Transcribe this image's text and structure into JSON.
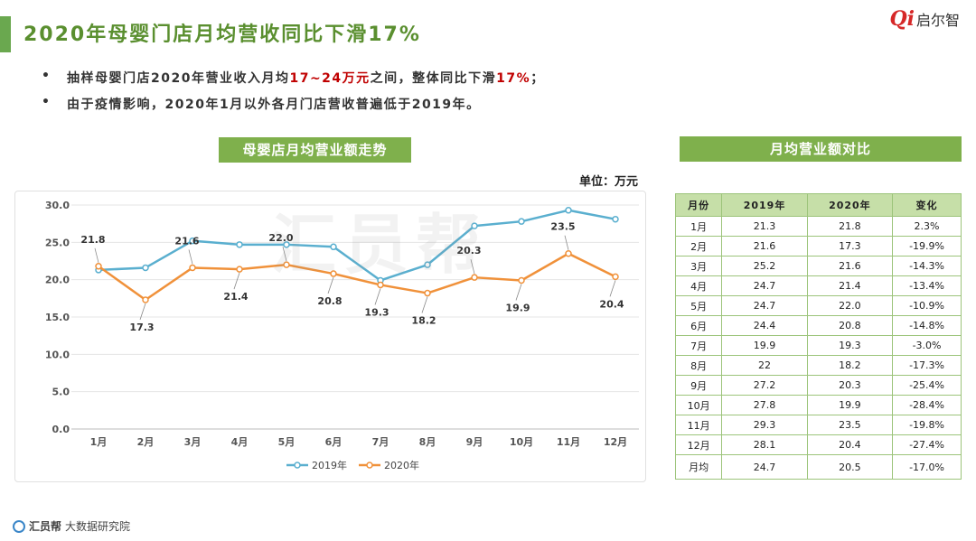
{
  "header": {
    "title": "2020年母婴门店月均营收同比下滑17%"
  },
  "logo": {
    "mark": "Qi",
    "text": "启尔智"
  },
  "bullets": [
    {
      "marker": "•",
      "pre": "抽样母婴门店2020年营业收入月均",
      "hl1": "17~24万元",
      "mid": "之间，整体同比下滑",
      "hl2": "17%",
      "post": "；"
    },
    {
      "marker": "•",
      "text": "由于疫情影响，2020年1月以外各月门店营收普遍低于2019年。"
    }
  ],
  "chart_section": {
    "header": "母婴店月均营业额走势",
    "unit": "单位：万元"
  },
  "table_section": {
    "header": "月均营业额对比"
  },
  "watermark": "汇员帮",
  "footer": {
    "brand": "汇员帮",
    "sub": "大数据研究院"
  },
  "colors": {
    "green": "#7fb04c",
    "series2019": "#5aafcf",
    "series2020": "#f0913a",
    "highlight": "#c00000"
  },
  "chart_data": {
    "type": "line",
    "title": "母婴店月均营业额走势",
    "unit": "万元",
    "categories": [
      "1月",
      "2月",
      "3月",
      "4月",
      "5月",
      "6月",
      "7月",
      "8月",
      "9月",
      "10月",
      "11月",
      "12月"
    ],
    "series": [
      {
        "name": "2019年",
        "values": [
          21.3,
          21.6,
          25.2,
          24.7,
          24.7,
          24.4,
          19.9,
          22,
          27.2,
          27.8,
          29.3,
          28.1
        ],
        "labeled": false
      },
      {
        "name": "2020年",
        "values": [
          21.8,
          17.3,
          21.6,
          21.4,
          22.0,
          20.8,
          19.3,
          18.2,
          20.3,
          19.9,
          23.5,
          20.4
        ],
        "labeled": true
      }
    ],
    "ylim": [
      0,
      30
    ],
    "yticks": [
      "0.0",
      "5.0",
      "10.0",
      "15.0",
      "20.0",
      "25.0",
      "30.0"
    ],
    "grid": true,
    "legend": "bottom-center"
  },
  "table": {
    "columns": [
      "月份",
      "2019年",
      "2020年",
      "变化"
    ],
    "rows": [
      [
        "1月",
        "21.3",
        "21.8",
        "2.3%"
      ],
      [
        "2月",
        "21.6",
        "17.3",
        "-19.9%"
      ],
      [
        "3月",
        "25.2",
        "21.6",
        "-14.3%"
      ],
      [
        "4月",
        "24.7",
        "21.4",
        "-13.4%"
      ],
      [
        "5月",
        "24.7",
        "22.0",
        "-10.9%"
      ],
      [
        "6月",
        "24.4",
        "20.8",
        "-14.8%"
      ],
      [
        "7月",
        "19.9",
        "19.3",
        "-3.0%"
      ],
      [
        "8月",
        "22",
        "18.2",
        "-17.3%"
      ],
      [
        "9月",
        "27.2",
        "20.3",
        "-25.4%"
      ],
      [
        "10月",
        "27.8",
        "19.9",
        "-28.4%"
      ],
      [
        "11月",
        "29.3",
        "23.5",
        "-19.8%"
      ],
      [
        "12月",
        "28.1",
        "20.4",
        "-27.4%"
      ]
    ],
    "avg_row": [
      "月均",
      "24.7",
      "20.5",
      "-17.0%"
    ]
  }
}
